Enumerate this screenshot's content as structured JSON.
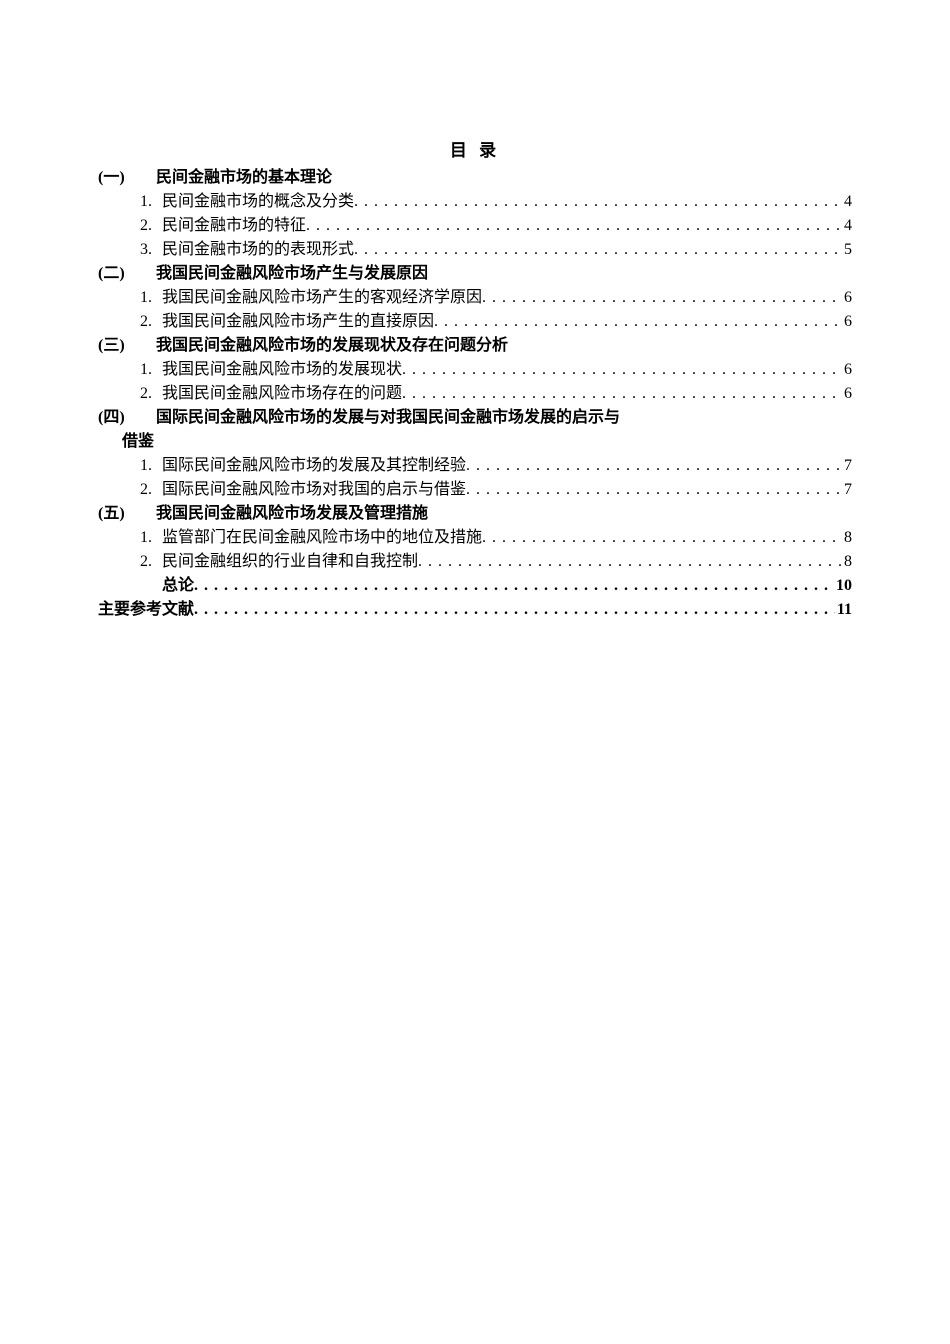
{
  "title": "目 录",
  "sections": [
    {
      "num": "(一)",
      "title": "民间金融市场的基本理论",
      "items": [
        {
          "num": "1.",
          "title": "民间金融市场的概念及分类",
          "page": "4"
        },
        {
          "num": "2.",
          "title": "民间金融市场的特征",
          "page": "4"
        },
        {
          "num": "3.",
          "title": "民间金融市场的的表现形式",
          "page": "5"
        }
      ]
    },
    {
      "num": "(二)",
      "title": "我国民间金融风险市场产生与发展原因",
      "items": [
        {
          "num": "1.",
          "title": "我国民间金融风险市场产生的客观经济学原因",
          "page": "6"
        },
        {
          "num": "2.",
          "title": "我国民间金融风险市场产生的直接原因",
          "page": "6"
        }
      ]
    },
    {
      "num": "(三)",
      "title": "我国民间金融风险市场的发展现状及存在问题分析",
      "items": [
        {
          "num": "1.",
          "title": "我国民间金融风险市场的发展现状",
          "page": "6"
        },
        {
          "num": "2.",
          "title": "我国民间金融风险市场存在的问题",
          "page": "6"
        }
      ]
    },
    {
      "num": "(四)",
      "title": "国际民间金融风险市场的发展与对我国民间金融市场发展的启示与",
      "wrap": "借鉴",
      "items": [
        {
          "num": "1.",
          "title": "国际民间金融风险市场的发展及其控制经验",
          "page": "7"
        },
        {
          "num": "2.",
          "title": "国际民间金融风险市场对我国的启示与借鉴",
          "page": "7"
        }
      ]
    },
    {
      "num": "(五)",
      "title": "我国民间金融风险市场发展及管理措施",
      "items": [
        {
          "num": "1.",
          "title": "监管部门在民间金融风险市场中的地位及措施",
          "page": "8"
        },
        {
          "num": "2.",
          "title": "民间金融组织的行业自律和自我控制",
          "page": "8"
        }
      ]
    }
  ],
  "conclusion": {
    "title": "总论",
    "page": "10"
  },
  "references": {
    "title": "主要参考文献",
    "page": "11"
  }
}
